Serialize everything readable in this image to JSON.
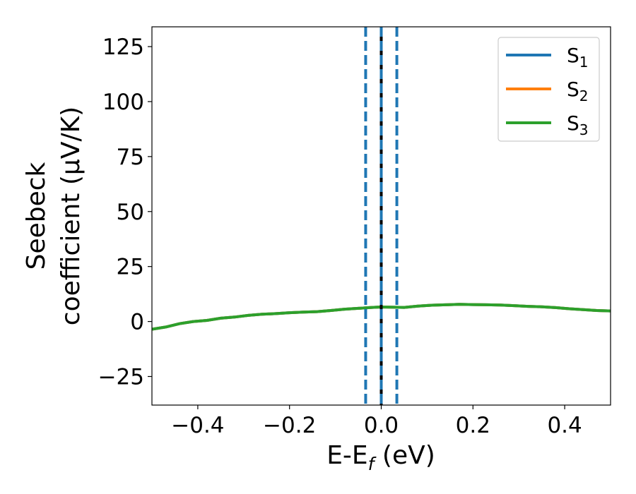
{
  "chart_data": {
    "type": "line",
    "title": "",
    "xlabel": {
      "main": "E-E",
      "sub": "f",
      "unit": " (eV)"
    },
    "ylabel": {
      "line1": "Seebeck",
      "line2": "coefficient  (μV/K)"
    },
    "xlim": [
      -0.5,
      0.5
    ],
    "ylim": [
      -38,
      134
    ],
    "xticks": [
      -0.4,
      -0.2,
      0.0,
      0.2,
      0.4
    ],
    "xtick_labels": [
      "−0.4",
      "−0.2",
      "0.0",
      "0.2",
      "0.4"
    ],
    "yticks": [
      -25,
      0,
      25,
      50,
      75,
      100,
      125
    ],
    "ytick_labels": [
      "−25",
      "0",
      "25",
      "50",
      "75",
      "100",
      "125"
    ],
    "grid": false,
    "legend_position": "top-right",
    "series": [
      {
        "name": "S",
        "sub": "1",
        "color": "#1f77b4",
        "x": [
          -0.5,
          -0.47,
          -0.44,
          -0.41,
          -0.38,
          -0.35,
          -0.32,
          -0.29,
          -0.26,
          -0.23,
          -0.2,
          -0.17,
          -0.14,
          -0.11,
          -0.08,
          -0.05,
          -0.02,
          0.0,
          0.02,
          0.05,
          0.08,
          0.11,
          0.14,
          0.17,
          0.2,
          0.23,
          0.26,
          0.29,
          0.32,
          0.35,
          0.38,
          0.41,
          0.44,
          0.47,
          0.5
        ],
        "y": [
          -3.5,
          -2.5,
          -1.0,
          0.0,
          0.5,
          1.5,
          2.0,
          2.8,
          3.3,
          3.6,
          4.0,
          4.3,
          4.5,
          5.0,
          5.6,
          6.0,
          6.4,
          6.6,
          6.5,
          6.4,
          7.0,
          7.4,
          7.6,
          7.8,
          7.7,
          7.6,
          7.5,
          7.2,
          6.9,
          6.7,
          6.3,
          5.8,
          5.4,
          5.0,
          4.8
        ]
      },
      {
        "name": "S",
        "sub": "2",
        "color": "#ff7f0e",
        "x": [
          -0.5,
          -0.47,
          -0.44,
          -0.41,
          -0.38,
          -0.35,
          -0.32,
          -0.29,
          -0.26,
          -0.23,
          -0.2,
          -0.17,
          -0.14,
          -0.11,
          -0.08,
          -0.05,
          -0.02,
          0.0,
          0.02,
          0.05,
          0.08,
          0.11,
          0.14,
          0.17,
          0.2,
          0.23,
          0.26,
          0.29,
          0.32,
          0.35,
          0.38,
          0.41,
          0.44,
          0.47,
          0.5
        ],
        "y": [
          -3.5,
          -2.5,
          -1.0,
          0.0,
          0.5,
          1.5,
          2.0,
          2.8,
          3.3,
          3.6,
          4.0,
          4.3,
          4.5,
          5.0,
          5.6,
          6.0,
          6.4,
          6.6,
          6.5,
          6.4,
          7.0,
          7.4,
          7.6,
          7.8,
          7.7,
          7.6,
          7.5,
          7.2,
          6.9,
          6.7,
          6.3,
          5.8,
          5.4,
          5.0,
          4.8
        ]
      },
      {
        "name": "S",
        "sub": "3",
        "color": "#2ca02c",
        "x": [
          -0.5,
          -0.47,
          -0.44,
          -0.41,
          -0.38,
          -0.35,
          -0.32,
          -0.29,
          -0.26,
          -0.23,
          -0.2,
          -0.17,
          -0.14,
          -0.11,
          -0.08,
          -0.05,
          -0.02,
          0.0,
          0.02,
          0.05,
          0.08,
          0.11,
          0.14,
          0.17,
          0.2,
          0.23,
          0.26,
          0.29,
          0.32,
          0.35,
          0.38,
          0.41,
          0.44,
          0.47,
          0.5
        ],
        "y": [
          -3.5,
          -2.5,
          -1.0,
          0.0,
          0.5,
          1.5,
          2.0,
          2.8,
          3.3,
          3.6,
          4.0,
          4.3,
          4.5,
          5.0,
          5.6,
          6.0,
          6.4,
          6.6,
          6.5,
          6.4,
          7.0,
          7.4,
          7.6,
          7.8,
          7.7,
          7.6,
          7.5,
          7.2,
          6.9,
          6.7,
          6.3,
          5.8,
          5.4,
          5.0,
          4.8
        ]
      }
    ],
    "vertical_lines": [
      {
        "x": -0.034,
        "style": "dashed",
        "color": "#1f77b4"
      },
      {
        "x": 0.0,
        "style": "solid",
        "color": "#000000"
      },
      {
        "x": 0.0,
        "style": "dashed",
        "color": "#1f77b4"
      },
      {
        "x": 0.034,
        "style": "dashed",
        "color": "#1f77b4"
      }
    ]
  }
}
